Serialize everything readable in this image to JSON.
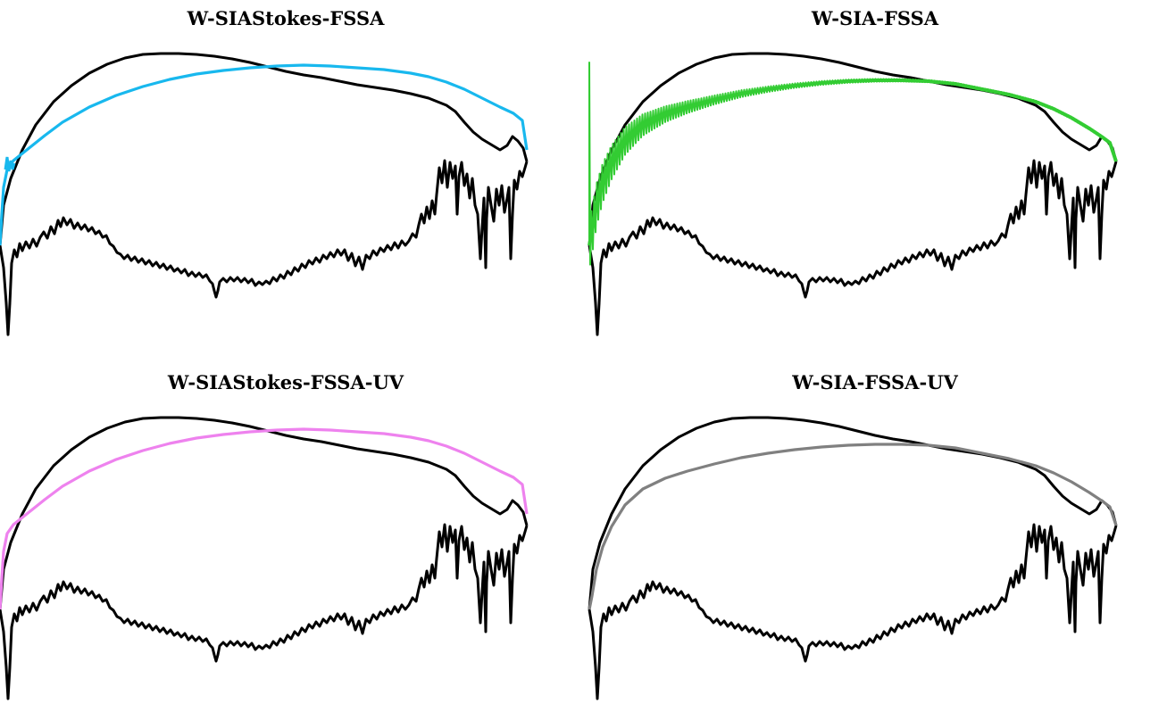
{
  "chart_data": [
    {
      "type": "line",
      "title": "W-SIAStokes-FSSA",
      "xlabel": "",
      "ylabel": "",
      "grid": false,
      "legend": "none",
      "color": "#18b8ee",
      "profile": "stokes",
      "oscillation": "small"
    },
    {
      "type": "line",
      "title": "W-SIA-FSSA",
      "xlabel": "",
      "ylabel": "",
      "grid": false,
      "legend": "none",
      "color": "#33cc33",
      "profile": "sia",
      "oscillation": "large"
    },
    {
      "type": "line",
      "title": "W-SIAStokes-FSSA-UV",
      "xlabel": "",
      "ylabel": "",
      "grid": false,
      "legend": "none",
      "color": "#ee82ee",
      "profile": "stokes",
      "oscillation": "none"
    },
    {
      "type": "line",
      "title": "W-SIA-FSSA-UV",
      "xlabel": "",
      "ylabel": "",
      "grid": false,
      "legend": "none",
      "color": "#808080",
      "profile": "sia",
      "oscillation": "none"
    }
  ]
}
